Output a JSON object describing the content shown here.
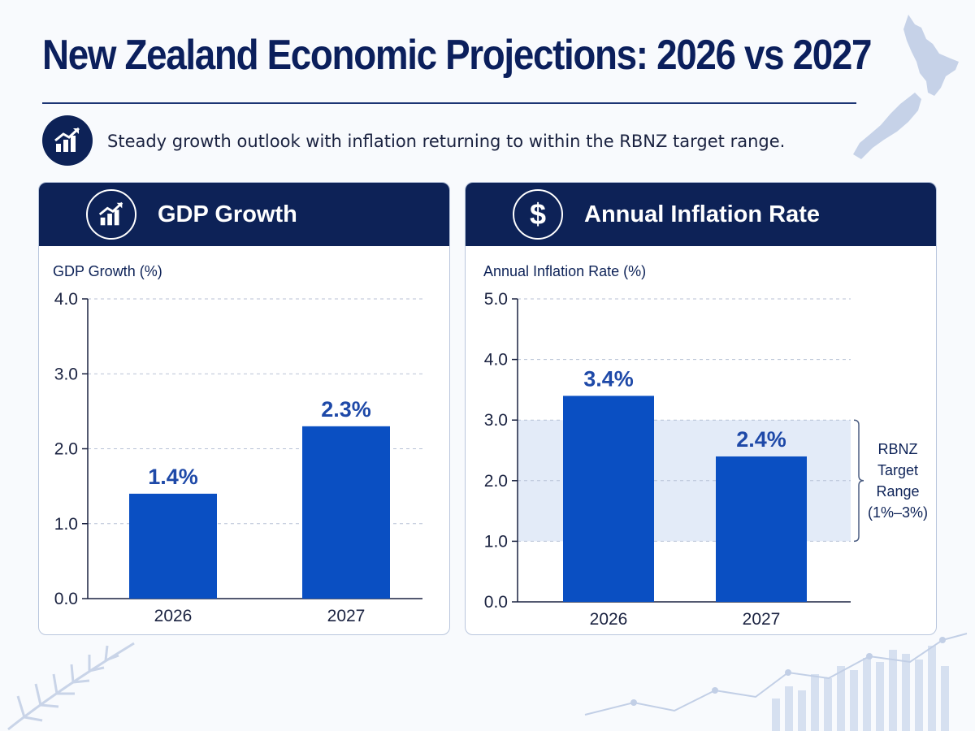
{
  "title": "New Zealand Economic Projections: 2026 vs 2027",
  "subtitle": "Steady growth outlook with inflation returning to within the RBNZ target range.",
  "colors": {
    "navy": "#0d2257",
    "bar": "#0a4fc2",
    "label": "#1e49a8",
    "band": "#e3ebf8"
  },
  "icons": {
    "subtitle": "growth-chart-icon",
    "gdp": "growth-chart-icon",
    "inflation": "dollar-icon"
  },
  "panels": {
    "gdp": {
      "header": "GDP Growth",
      "icon_glyph": ""
    },
    "inflation": {
      "header": "Annual Inflation Rate",
      "icon_glyph": "$"
    }
  },
  "chart_data": [
    {
      "type": "bar",
      "title": "GDP Growth",
      "ylabel": "GDP Growth (%)",
      "xlabel": "",
      "categories": [
        "2026",
        "2027"
      ],
      "values": [
        1.4,
        2.3
      ],
      "value_labels": [
        "1.4%",
        "2.3%"
      ],
      "ylim": [
        0,
        4
      ],
      "yticks": [
        0,
        1,
        2,
        3,
        4
      ],
      "ytick_labels": [
        "0.0",
        "1.0",
        "2.0",
        "3.0",
        "4.0"
      ],
      "grid": true
    },
    {
      "type": "bar",
      "title": "Annual Inflation Rate",
      "ylabel": "Annual Inflation Rate (%)",
      "xlabel": "",
      "categories": [
        "2026",
        "2027"
      ],
      "values": [
        3.4,
        2.4
      ],
      "value_labels": [
        "3.4%",
        "2.4%"
      ],
      "ylim": [
        0,
        5
      ],
      "yticks": [
        0,
        1,
        2,
        3,
        4,
        5
      ],
      "ytick_labels": [
        "0.0",
        "1.0",
        "2.0",
        "3.0",
        "4.0",
        "5.0"
      ],
      "grid": true,
      "target_range": {
        "min": 1,
        "max": 3,
        "label_lines": [
          "RBNZ",
          "Target",
          "Range",
          "(1%–3%)"
        ]
      }
    }
  ]
}
